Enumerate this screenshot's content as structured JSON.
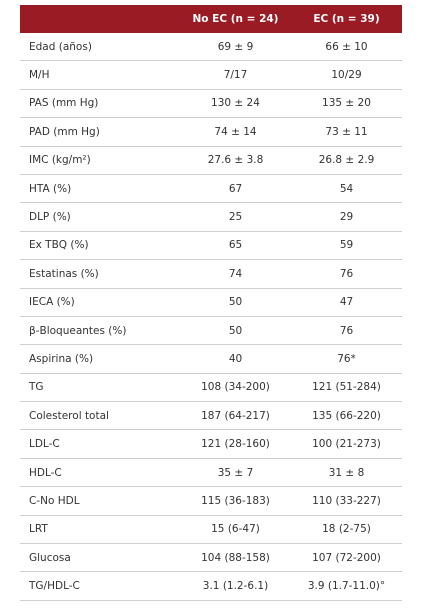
{
  "table": {
    "header": [
      "No EC (n = 24)",
      "EC (n = 39)"
    ],
    "rows": [
      [
        "Edad (años)",
        "69 ± 9",
        "66 ± 10"
      ],
      [
        "M/H",
        "7/17",
        "10/29"
      ],
      [
        "PAS (mm Hg)",
        "130 ± 24",
        "135 ± 20"
      ],
      [
        "PAD (mm Hg)",
        "74 ± 14",
        "73 ± 11"
      ],
      [
        "IMC (kg/m²)",
        "27.6 ± 3.8",
        "26.8 ± 2.9"
      ],
      [
        "HTA (%)",
        "67",
        "54"
      ],
      [
        "DLP (%)",
        "25",
        "29"
      ],
      [
        "Ex TBQ (%)",
        "65",
        "59"
      ],
      [
        "Estatinas (%)",
        "74",
        "76"
      ],
      [
        "IECA (%)",
        "50",
        "47"
      ],
      [
        "β-Bloqueantes (%)",
        "50",
        "76"
      ],
      [
        "Aspirina (%)",
        "40",
        "76*"
      ],
      [
        "TG",
        "108 (34-200)",
        "121 (51-284)"
      ],
      [
        "Colesterol total",
        "187 (64-217)",
        "135 (66-220)"
      ],
      [
        "LDL-C",
        "121 (28-160)",
        "100 (21-273)"
      ],
      [
        "HDL-C",
        "35 ± 7",
        "31 ± 8"
      ],
      [
        "C-No HDL",
        "115 (36-183)",
        "110 (33-227)"
      ],
      [
        "LRT",
        "15 (6-47)",
        "18 (2-75)"
      ],
      [
        "Glucosa",
        "104 (88-158)",
        "107 (72-200)"
      ],
      [
        "TG/HDL-C",
        "3.1 (1.2-6.1)",
        "3.9 (1.7-11.0)°"
      ]
    ]
  }
}
